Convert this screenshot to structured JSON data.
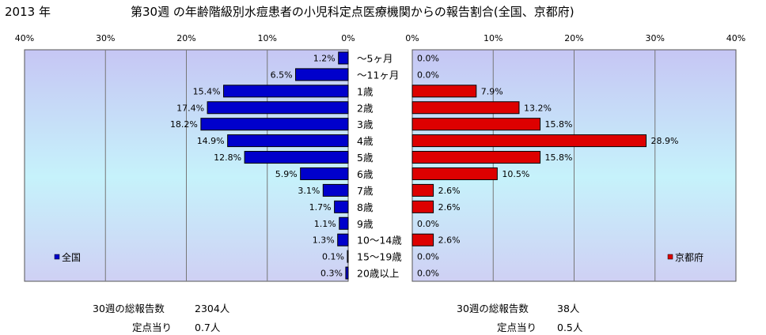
{
  "header": {
    "year": "2013 年",
    "title": "第30週 の年齢階級別水痘患者の小児科定点医療機関からの報告割合(全国、京都府)"
  },
  "chart_data": {
    "type": "bar",
    "orientation": "horizontal-butterfly",
    "categories": [
      "～5ヶ月",
      "～11ヶ月",
      "1歳",
      "2歳",
      "3歳",
      "4歳",
      "5歳",
      "6歳",
      "7歳",
      "8歳",
      "9歳",
      "10～14歳",
      "15～19歳",
      "20歳以上"
    ],
    "xlim": [
      0,
      40
    ],
    "tick_labels": [
      "0%",
      "10%",
      "20%",
      "30%",
      "40%"
    ],
    "grid": true,
    "series": [
      {
        "name": "全国",
        "side": "left",
        "color": "#0000cc",
        "values": [
          1.2,
          6.5,
          15.4,
          17.4,
          18.2,
          14.9,
          12.8,
          5.9,
          3.1,
          1.7,
          1.1,
          1.3,
          0.1,
          0.3
        ],
        "value_labels": [
          "1.2%",
          "6.5%",
          "15.4%",
          "17.4%",
          "18.2%",
          "14.9%",
          "12.8%",
          "5.9%",
          "3.1%",
          "1.7%",
          "1.1%",
          "1.3%",
          "0.1%",
          "0.3%"
        ],
        "legend_position": "bottom-left"
      },
      {
        "name": "京都府",
        "side": "right",
        "color": "#dd0000",
        "values": [
          0.0,
          0.0,
          7.9,
          13.2,
          15.8,
          28.9,
          15.8,
          10.5,
          2.6,
          2.6,
          0.0,
          2.6,
          0.0,
          0.0
        ],
        "value_labels": [
          "0.0%",
          "0.0%",
          "7.9%",
          "13.2%",
          "15.8%",
          "28.9%",
          "15.8%",
          "10.5%",
          "2.6%",
          "2.6%",
          "0.0%",
          "2.6%",
          "0.0%",
          "0.0%"
        ],
        "legend_position": "bottom-right"
      }
    ]
  },
  "summary": {
    "national": {
      "total_label": "30週の総報告数",
      "total_value": "2304人",
      "per_label": "定点当り",
      "per_value": "0.7人"
    },
    "kyoto": {
      "total_label": "30週の総報告数",
      "total_value": "38人",
      "per_label": "定点当り",
      "per_value": "0.5人"
    }
  }
}
